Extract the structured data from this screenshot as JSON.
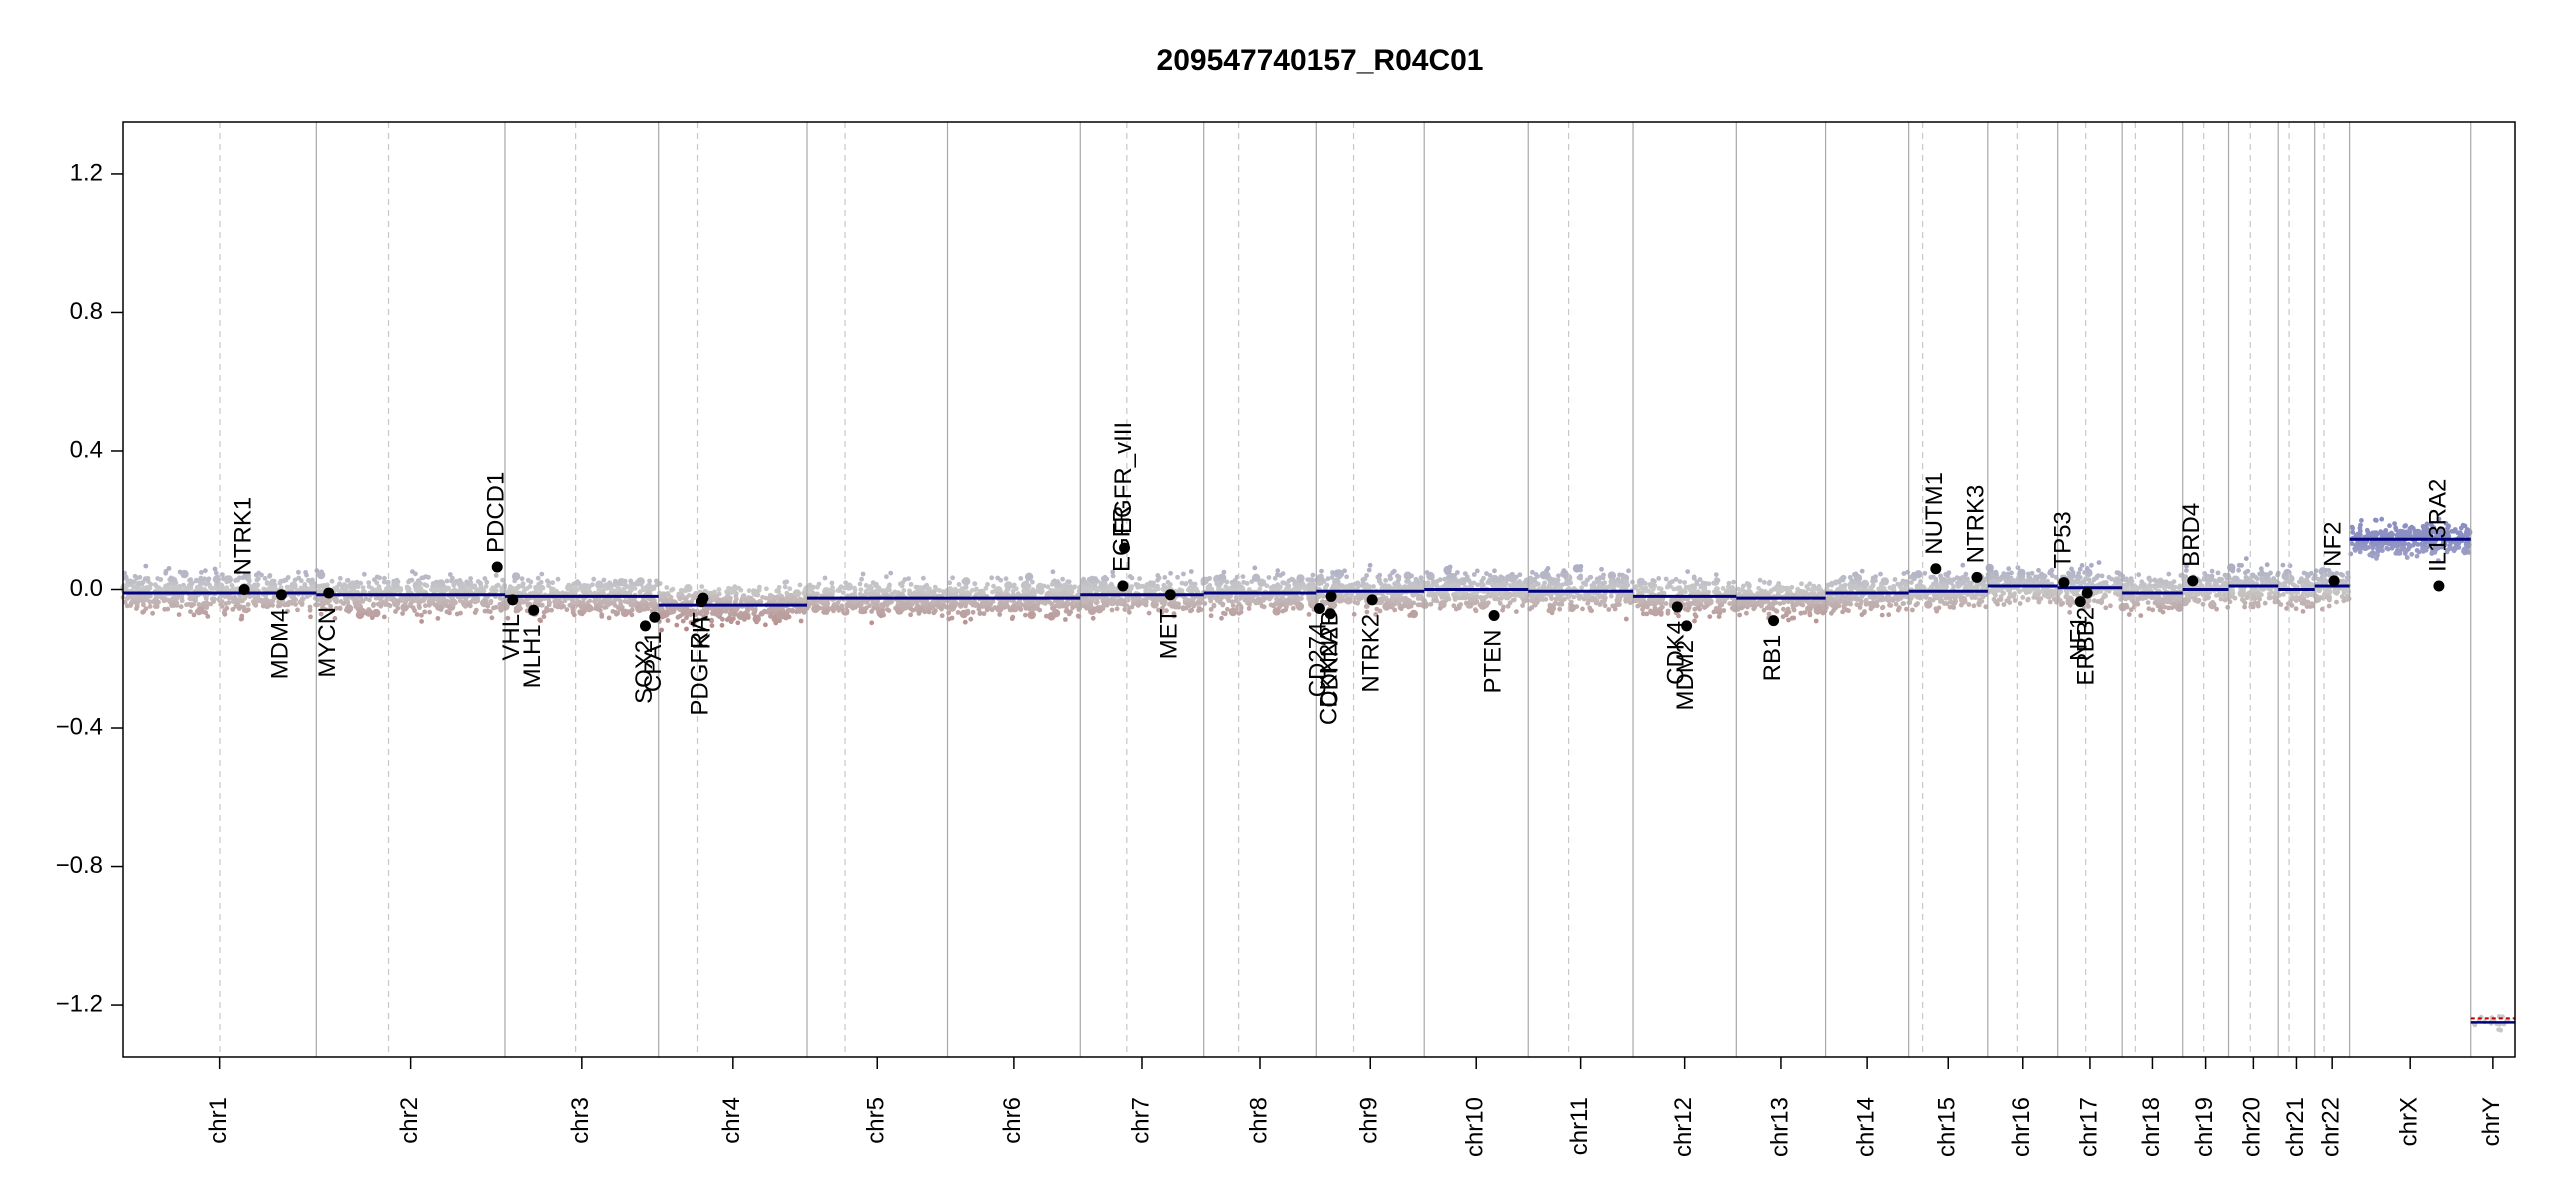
{
  "chart_data": {
    "type": "scatter",
    "title": "209547740157_R04C01",
    "xlabel": "",
    "ylabel": "",
    "ylim": [
      -1.35,
      1.35
    ],
    "yticks": [
      1.2,
      0.8,
      0.4,
      0.0,
      -0.4,
      -0.8,
      -1.2
    ],
    "ytick_labels": [
      "1.2",
      "0.8",
      "0.4",
      "0.0",
      "−0.4",
      "−0.8",
      "−1.2"
    ],
    "grid": false,
    "colors": {
      "segment": "#000080",
      "gain": "#8c8fc2",
      "loss": "#b07a7a",
      "neutral": "#c8c8c8",
      "chrom_line": "#a8a8a8",
      "centromere_line": "#c8c8c8",
      "gene_point": "#000000",
      "ymarker": "#c00000"
    },
    "chromosomes": [
      {
        "name": "chr1",
        "start": 0,
        "end": 249,
        "centromere": 125
      },
      {
        "name": "chr2",
        "start": 249,
        "end": 492,
        "centromere": 342
      },
      {
        "name": "chr3",
        "start": 492,
        "end": 690,
        "centromere": 583
      },
      {
        "name": "chr4",
        "start": 690,
        "end": 881,
        "centromere": 740
      },
      {
        "name": "chr5",
        "start": 881,
        "end": 1062,
        "centromere": 930
      },
      {
        "name": "chr6",
        "start": 1062,
        "end": 1233,
        "centromere": null
      },
      {
        "name": "chr7",
        "start": 1233,
        "end": 1392,
        "centromere": 1293
      },
      {
        "name": "chr8",
        "start": 1392,
        "end": 1537,
        "centromere": 1437
      },
      {
        "name": "chr9",
        "start": 1537,
        "end": 1676,
        "centromere": 1585
      },
      {
        "name": "chr10",
        "start": 1676,
        "end": 1810,
        "centromere": null
      },
      {
        "name": "chr11",
        "start": 1810,
        "end": 1945,
        "centromere": 1862
      },
      {
        "name": "chr12",
        "start": 1945,
        "end": 2078,
        "centromere": null
      },
      {
        "name": "chr13",
        "start": 2078,
        "end": 2193,
        "centromere": null
      },
      {
        "name": "chr14",
        "start": 2193,
        "end": 2300,
        "centromere": null
      },
      {
        "name": "chr15",
        "start": 2300,
        "end": 2402,
        "centromere": 2318
      },
      {
        "name": "chr16",
        "start": 2402,
        "end": 2492,
        "centromere": 2440
      },
      {
        "name": "chr17",
        "start": 2492,
        "end": 2575,
        "centromere": 2528
      },
      {
        "name": "chr18",
        "start": 2575,
        "end": 2653,
        "centromere": 2592
      },
      {
        "name": "chr19",
        "start": 2653,
        "end": 2712,
        "centromere": 2680
      },
      {
        "name": "chr20",
        "start": 2712,
        "end": 2776,
        "centromere": 2740
      },
      {
        "name": "chr21",
        "start": 2776,
        "end": 2823,
        "centromere": 2790
      },
      {
        "name": "chr22",
        "start": 2823,
        "end": 2868,
        "centromere": 2835
      },
      {
        "name": "chrX",
        "start": 2868,
        "end": 3024,
        "centromere": null
      },
      {
        "name": "chrY",
        "start": 3024,
        "end": 3081,
        "centromere": null
      }
    ],
    "segments": [
      {
        "start": 0,
        "end": 249,
        "value": -0.01
      },
      {
        "start": 249,
        "end": 492,
        "value": -0.015
      },
      {
        "start": 492,
        "end": 690,
        "value": -0.02
      },
      {
        "start": 690,
        "end": 881,
        "value": -0.045
      },
      {
        "start": 881,
        "end": 1062,
        "value": -0.025
      },
      {
        "start": 1062,
        "end": 1233,
        "value": -0.025
      },
      {
        "start": 1233,
        "end": 1392,
        "value": -0.015
      },
      {
        "start": 1392,
        "end": 1537,
        "value": -0.01
      },
      {
        "start": 1537,
        "end": 1676,
        "value": -0.005
      },
      {
        "start": 1676,
        "end": 1810,
        "value": 0.0
      },
      {
        "start": 1810,
        "end": 1945,
        "value": -0.005
      },
      {
        "start": 1945,
        "end": 2078,
        "value": -0.02
      },
      {
        "start": 2078,
        "end": 2193,
        "value": -0.025
      },
      {
        "start": 2193,
        "end": 2300,
        "value": -0.01
      },
      {
        "start": 2300,
        "end": 2402,
        "value": -0.005
      },
      {
        "start": 2402,
        "end": 2492,
        "value": 0.01
      },
      {
        "start": 2492,
        "end": 2575,
        "value": 0.005
      },
      {
        "start": 2575,
        "end": 2653,
        "value": -0.01
      },
      {
        "start": 2653,
        "end": 2712,
        "value": 0.0
      },
      {
        "start": 2712,
        "end": 2776,
        "value": 0.01
      },
      {
        "start": 2776,
        "end": 2823,
        "value": 0.0
      },
      {
        "start": 2823,
        "end": 2868,
        "value": 0.01
      },
      {
        "start": 2868,
        "end": 2970,
        "value": 0.145
      },
      {
        "start": 2970,
        "end": 3024,
        "value": 0.145
      },
      {
        "start": 3024,
        "end": 3081,
        "value": -1.25
      }
    ],
    "genes": [
      {
        "name": "NTRK1",
        "pos": 156,
        "value": 0.0,
        "label": "above"
      },
      {
        "name": "MDM4",
        "pos": 204,
        "value": -0.015,
        "label": "below"
      },
      {
        "name": "MYCN",
        "pos": 265,
        "value": -0.01,
        "label": "below"
      },
      {
        "name": "PDCD1",
        "pos": 482,
        "value": 0.065,
        "label": "above"
      },
      {
        "name": "VHL",
        "pos": 502,
        "value": -0.03,
        "label": "below"
      },
      {
        "name": "MLH1",
        "pos": 529,
        "value": -0.06,
        "label": "below"
      },
      {
        "name": "SOX2",
        "pos": 673,
        "value": -0.105,
        "label": "below"
      },
      {
        "name": "CPA1",
        "pos": 685,
        "value": -0.08,
        "label": "below"
      },
      {
        "name": "PDGFRA",
        "pos": 745,
        "value": -0.035,
        "label": "below"
      },
      {
        "name": "KIT",
        "pos": 747,
        "value": -0.025,
        "label": "below"
      },
      {
        "name": "EGFR",
        "pos": 1288,
        "value": 0.01,
        "label": "above"
      },
      {
        "name": "EGFR_vIII",
        "pos": 1290,
        "value": 0.12,
        "label": "above"
      },
      {
        "name": "MET",
        "pos": 1349,
        "value": -0.015,
        "label": "below"
      },
      {
        "name": "CD274",
        "pos": 1541,
        "value": -0.055,
        "label": "below"
      },
      {
        "name": "CDKN2A",
        "pos": 1555,
        "value": -0.07,
        "label": "below"
      },
      {
        "name": "CDKN2B",
        "pos": 1556,
        "value": -0.02,
        "label": "below"
      },
      {
        "name": "NTRK2",
        "pos": 1609,
        "value": -0.03,
        "label": "below"
      },
      {
        "name": "PTEN",
        "pos": 1766,
        "value": -0.075,
        "label": "below"
      },
      {
        "name": "CDK4",
        "pos": 2002,
        "value": -0.05,
        "label": "below"
      },
      {
        "name": "MDM2",
        "pos": 2014,
        "value": -0.105,
        "label": "below"
      },
      {
        "name": "RB1",
        "pos": 2126,
        "value": -0.09,
        "label": "below"
      },
      {
        "name": "NUTM1",
        "pos": 2335,
        "value": 0.06,
        "label": "above"
      },
      {
        "name": "NTRK3",
        "pos": 2388,
        "value": 0.035,
        "label": "above"
      },
      {
        "name": "TP53",
        "pos": 2500,
        "value": 0.02,
        "label": "above"
      },
      {
        "name": "NF1",
        "pos": 2521,
        "value": -0.035,
        "label": "below"
      },
      {
        "name": "ERBB2",
        "pos": 2530,
        "value": -0.01,
        "label": "below"
      },
      {
        "name": "BRD4",
        "pos": 2666,
        "value": 0.025,
        "label": "above"
      },
      {
        "name": "NF2",
        "pos": 2848,
        "value": 0.025,
        "label": "above"
      },
      {
        "name": "IL13RA2",
        "pos": 2983,
        "value": 0.01,
        "label": "above"
      }
    ]
  }
}
